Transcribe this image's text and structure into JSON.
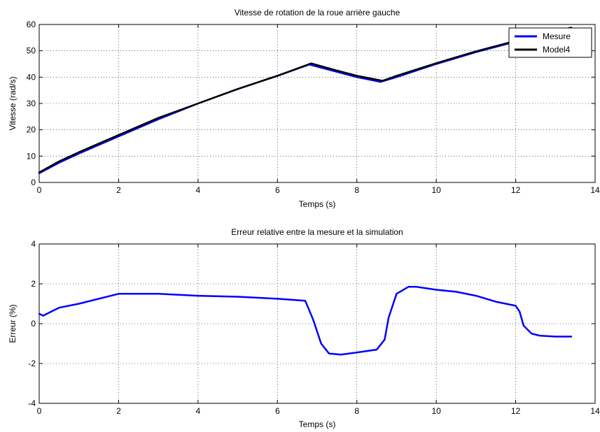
{
  "colors": {
    "mesure": "#0000ff",
    "model4": "#000000"
  },
  "chart_data": [
    {
      "type": "line",
      "title": "Vitesse de rotation de la roue arrière gauche",
      "xlabel": "Temps (s)",
      "ylabel": "Vitesse (rad/s)",
      "xlim": [
        0,
        14
      ],
      "ylim": [
        0,
        60
      ],
      "xticks": [
        0,
        2,
        4,
        6,
        8,
        10,
        12,
        14
      ],
      "yticks": [
        0,
        10,
        20,
        30,
        40,
        50,
        60
      ],
      "grid": true,
      "legend": "top-right",
      "series": [
        {
          "name": "Mesure",
          "color": "#0000ff",
          "x": [
            0,
            0.5,
            1,
            2,
            3,
            4,
            5,
            6,
            6.8,
            7.5,
            8.0,
            8.6,
            9.0,
            10,
            11,
            12,
            12.5,
            13.4
          ],
          "y": [
            3.5,
            7.5,
            11,
            17.5,
            24,
            30,
            35.5,
            40.5,
            44.8,
            42,
            40,
            38.2,
            40,
            45,
            49.5,
            53.5,
            55.5,
            58.5
          ]
        },
        {
          "name": "Model4",
          "color": "#000000",
          "x": [
            0,
            0.5,
            1,
            2,
            3,
            4,
            5,
            6,
            6.85,
            7.5,
            8.0,
            8.65,
            9.0,
            10,
            11,
            12,
            12.5,
            13.4
          ],
          "y": [
            3.8,
            8.0,
            11.5,
            18,
            24.5,
            30,
            35.5,
            40.5,
            45.2,
            42.5,
            40.5,
            38.6,
            40.5,
            45.3,
            49.8,
            53.8,
            55.8,
            58.8
          ]
        }
      ]
    },
    {
      "type": "line",
      "title": "Erreur relative entre la mesure et la simulation",
      "xlabel": "Temps (s)",
      "ylabel": "Erreur (%)",
      "xlim": [
        0,
        14
      ],
      "ylim": [
        -4,
        4
      ],
      "xticks": [
        0,
        2,
        4,
        6,
        8,
        10,
        12,
        14
      ],
      "yticks": [
        -4,
        -2,
        0,
        2,
        4
      ],
      "grid": true,
      "series": [
        {
          "name": "",
          "color": "#0000ff",
          "x": [
            0,
            0.1,
            0.3,
            0.5,
            1,
            2,
            3,
            4,
            5,
            6,
            6.7,
            6.9,
            7.1,
            7.3,
            7.6,
            8,
            8.5,
            8.7,
            8.8,
            9.0,
            9.3,
            9.5,
            10,
            10.5,
            11,
            11.5,
            12,
            12.1,
            12.2,
            12.4,
            12.6,
            13,
            13.4
          ],
          "y": [
            0.5,
            0.4,
            0.6,
            0.8,
            1.0,
            1.5,
            1.5,
            1.4,
            1.35,
            1.25,
            1.15,
            0.2,
            -1.0,
            -1.5,
            -1.55,
            -1.45,
            -1.3,
            -0.8,
            0.3,
            1.5,
            1.85,
            1.85,
            1.7,
            1.6,
            1.4,
            1.1,
            0.9,
            0.6,
            -0.1,
            -0.5,
            -0.6,
            -0.65,
            -0.65
          ]
        }
      ]
    }
  ]
}
